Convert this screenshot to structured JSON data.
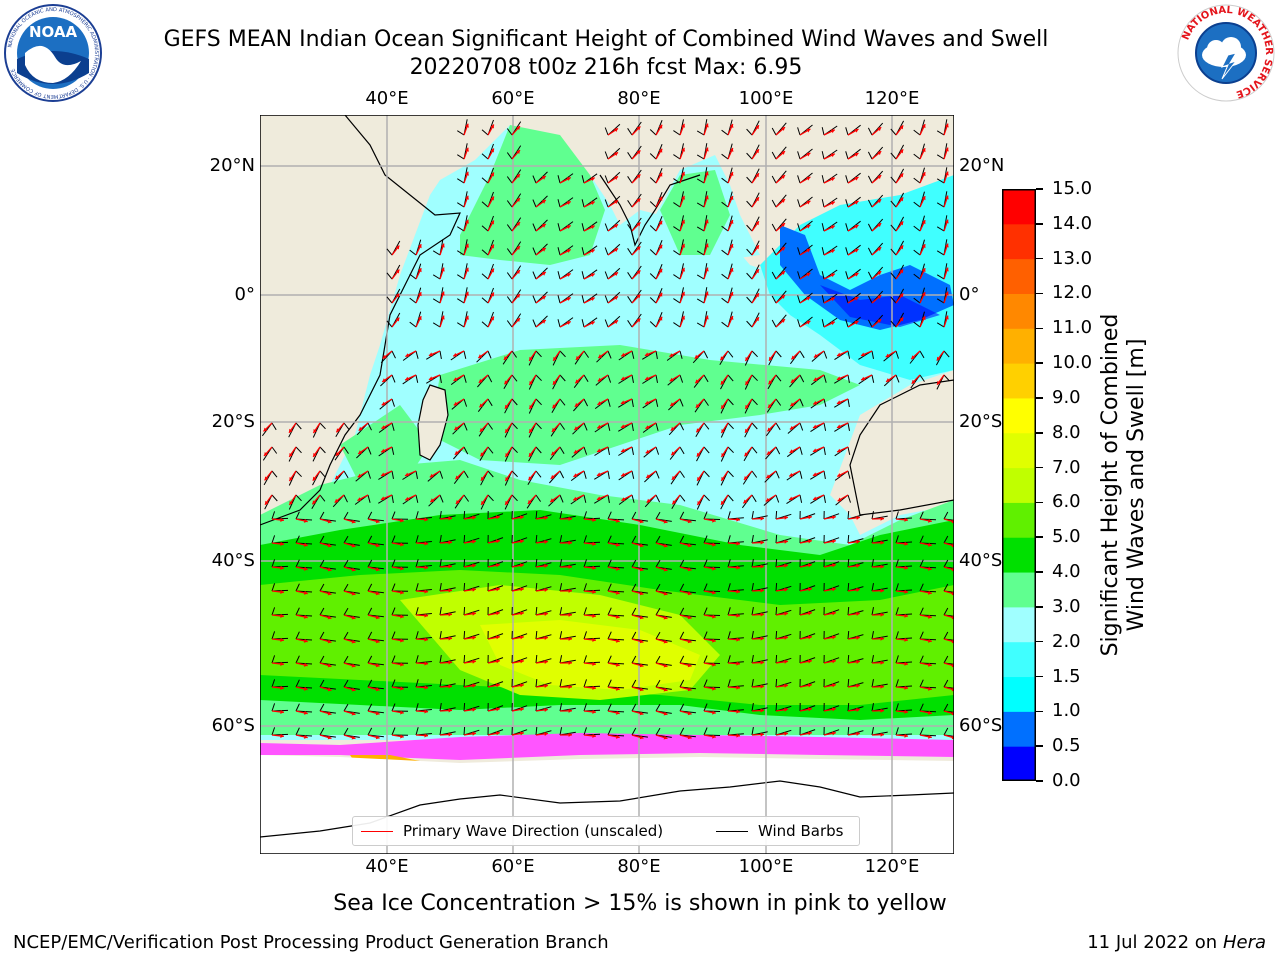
{
  "title": {
    "line1": "GEFS MEAN Indian Ocean Significant Height of Combined Wind Waves and Swell",
    "line2": "20220708 t00z 216h fcst   Max: 6.95"
  },
  "logos": {
    "noaa": {
      "text": "NOAA",
      "ring_text": "NATIONAL OCEANIC AND ATMOSPHERIC ADMINISTRATION · U.S. DEPARTMENT OF COMMERCE"
    },
    "nws": {
      "ring_text": "NATIONAL WEATHER SERVICE"
    }
  },
  "map": {
    "lon_range": [
      20,
      130
    ],
    "lat_range": [
      -75,
      28
    ],
    "lon_ticks": [
      "40°E",
      "60°E",
      "80°E",
      "100°E",
      "120°E"
    ],
    "lat_ticks": [
      "20°N",
      "0°",
      "20°S",
      "40°S",
      "60°S"
    ],
    "land_color": "#efebdc",
    "ice_color": "#ffffff",
    "grid": true
  },
  "colorbar": {
    "label": "Significant Height of Combined Wind Waves and Swell [m]",
    "tick_labels": [
      "0.0",
      "0.5",
      "1.0",
      "1.5",
      "2.0",
      "3.0",
      "4.0",
      "5.0",
      "6.0",
      "7.0",
      "8.0",
      "9.0",
      "10.0",
      "11.0",
      "12.0",
      "13.0",
      "14.0",
      "15.0"
    ],
    "colors": [
      "#0000ff",
      "#0070ff",
      "#00ffff",
      "#40ffff",
      "#a0ffff",
      "#60ff90",
      "#00e000",
      "#60f000",
      "#c0ff00",
      "#e0ff00",
      "#ffff00",
      "#ffd000",
      "#ffb000",
      "#ff8800",
      "#ff6000",
      "#ff3000",
      "#ff0000"
    ]
  },
  "legend": {
    "items": [
      {
        "label": "Primary Wave Direction (unscaled)",
        "color": "#ff0000"
      },
      {
        "label": "Wind Barbs",
        "color": "#000000"
      }
    ]
  },
  "note": "Sea Ice Concentration > 15% is shown in pink to yellow",
  "footer": {
    "left": "NCEP/EMC/Verification Post Processing Product Generation Branch",
    "right_date": "11 Jul 2022 on ",
    "right_host": "Hera"
  }
}
